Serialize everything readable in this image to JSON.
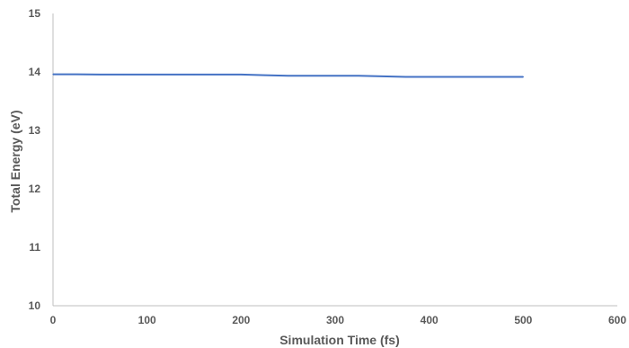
{
  "chart_data": {
    "type": "line",
    "title": "",
    "xlabel": "Simulation Time (fs)",
    "ylabel": "Total Energy (eV)",
    "xlim": [
      0,
      600
    ],
    "ylim": [
      10,
      15
    ],
    "xticks": [
      0,
      100,
      200,
      300,
      400,
      500,
      600
    ],
    "yticks": [
      10,
      11,
      12,
      13,
      14,
      15
    ],
    "grid": false,
    "legend": "none",
    "series_color": "#4472c4",
    "axis_color": "#bfbfbf",
    "text_color": "#595959",
    "series": [
      {
        "x": [
          0,
          25,
          50,
          75,
          100,
          125,
          150,
          175,
          200,
          225,
          250,
          275,
          300,
          325,
          350,
          375,
          400,
          425,
          450,
          475,
          500
        ],
        "y": [
          13.96,
          13.96,
          13.955,
          13.955,
          13.955,
          13.955,
          13.955,
          13.955,
          13.955,
          13.945,
          13.935,
          13.935,
          13.935,
          13.935,
          13.925,
          13.915,
          13.915,
          13.915,
          13.915,
          13.915,
          13.915
        ]
      }
    ]
  }
}
